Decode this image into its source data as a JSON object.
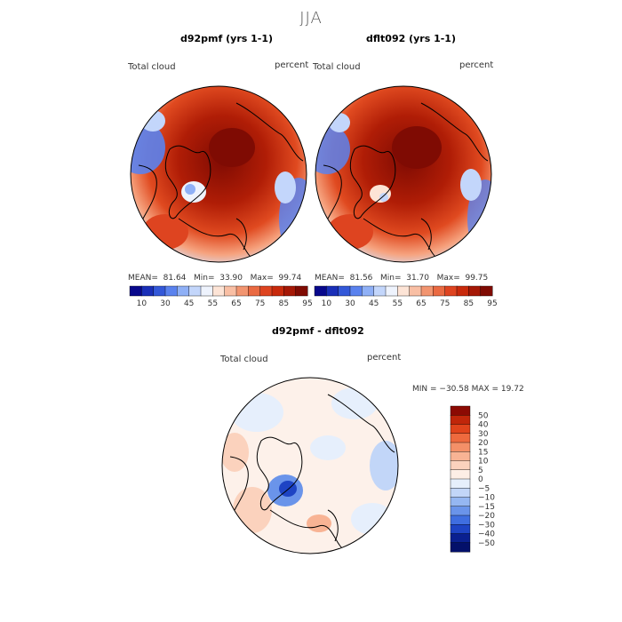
{
  "figure": {
    "season": "JJA"
  },
  "panels": [
    {
      "title": "d92pmf (yrs 1-1)",
      "variable": "Total cloud",
      "units": "percent",
      "stats": {
        "mean_label": "MEAN=",
        "mean": "81.64",
        "min_label": "Min=",
        "min": "33.90",
        "max_label": "Max=",
        "max": "99.74"
      }
    },
    {
      "title": "dflt092 (yrs 1-1)",
      "variable": "Total cloud",
      "units": "percent",
      "stats": {
        "mean_label": "MEAN=",
        "mean": "81.56",
        "min_label": "Min=",
        "min": "31.70",
        "max_label": "Max=",
        "max": "99.75"
      }
    },
    {
      "title": "d92pmf - dflt092",
      "variable": "Total cloud",
      "units": "percent",
      "stats_text": "MIN = −30.58 MAX =   19.72"
    }
  ],
  "colorbar_abs": {
    "ticks": [
      "10",
      "30",
      "45",
      "55",
      "65",
      "75",
      "85",
      "95"
    ],
    "colors": [
      "#08088c",
      "#1a2fb8",
      "#3358d8",
      "#5a82ee",
      "#8fb0f6",
      "#c3d6fb",
      "#eef3fd",
      "#fde4d6",
      "#f9bfa4",
      "#f29570",
      "#ea6a42",
      "#de4420",
      "#c82a0c",
      "#a51806",
      "#7f0b03"
    ]
  },
  "colorbar_diff": {
    "ticks": [
      "50",
      "40",
      "30",
      "20",
      "15",
      "10",
      "5",
      "0",
      "−5",
      "−10",
      "−15",
      "−20",
      "−30",
      "−40",
      "−50"
    ],
    "colors": [
      "#8c0a03",
      "#c0260a",
      "#e0441c",
      "#ee6a3e",
      "#f49068",
      "#f8b394",
      "#fbd2bd",
      "#fdeee6",
      "#e6effc",
      "#c2d6f8",
      "#95b7f2",
      "#6a94ea",
      "#3f6ee0",
      "#1e44c4",
      "#0a2090",
      "#03106a"
    ]
  }
}
